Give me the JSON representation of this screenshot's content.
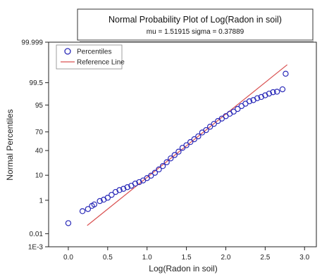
{
  "chart_data": {
    "type": "scatter",
    "title": "Normal Probability Plot of Log(Radon in soil)",
    "subtitle": "mu = 1.51915  sigma = 0.37889",
    "xlabel": "Log(Radon in soil)",
    "ylabel": "Normal Percentiles",
    "xlim": [
      -0.25,
      3.15
    ],
    "x_ticks": [
      "0.0",
      "0.5",
      "1.0",
      "1.5",
      "2.0",
      "2.5",
      "3.0"
    ],
    "y_ticks": [
      "99.999",
      "99.5",
      "95",
      "70",
      "40",
      "10",
      "1",
      "0.01",
      "1E-3"
    ],
    "y_tick_z": [
      4.265,
      2.576,
      1.645,
      0.524,
      -0.253,
      -1.282,
      -2.326,
      -3.719,
      -4.265
    ],
    "legend_position": "top-left",
    "grid": false,
    "series": [
      {
        "name": "Percentiles",
        "marker": "open-circle",
        "color": "#2a2ab8",
        "points": [
          [
            0.0,
            -3.28
          ],
          [
            0.18,
            -2.78
          ],
          [
            0.25,
            -2.69
          ],
          [
            0.3,
            -2.56
          ],
          [
            0.33,
            -2.5
          ],
          [
            0.4,
            -2.36
          ],
          [
            0.45,
            -2.3
          ],
          [
            0.5,
            -2.22
          ],
          [
            0.55,
            -2.1
          ],
          [
            0.6,
            -1.98
          ],
          [
            0.65,
            -1.9
          ],
          [
            0.7,
            -1.85
          ],
          [
            0.75,
            -1.78
          ],
          [
            0.8,
            -1.72
          ],
          [
            0.85,
            -1.63
          ],
          [
            0.9,
            -1.57
          ],
          [
            0.95,
            -1.5
          ],
          [
            1.0,
            -1.4
          ],
          [
            1.05,
            -1.3
          ],
          [
            1.1,
            -1.18
          ],
          [
            1.15,
            -1.04
          ],
          [
            1.2,
            -0.9
          ],
          [
            1.25,
            -0.74
          ],
          [
            1.3,
            -0.58
          ],
          [
            1.35,
            -0.44
          ],
          [
            1.4,
            -0.3
          ],
          [
            1.45,
            -0.14
          ],
          [
            1.5,
            -0.03
          ],
          [
            1.55,
            0.1
          ],
          [
            1.6,
            0.22
          ],
          [
            1.65,
            0.34
          ],
          [
            1.7,
            0.5
          ],
          [
            1.75,
            0.6
          ],
          [
            1.8,
            0.74
          ],
          [
            1.85,
            0.86
          ],
          [
            1.9,
            0.98
          ],
          [
            1.95,
            1.08
          ],
          [
            2.0,
            1.18
          ],
          [
            2.05,
            1.28
          ],
          [
            2.1,
            1.37
          ],
          [
            2.15,
            1.48
          ],
          [
            2.2,
            1.6
          ],
          [
            2.25,
            1.7
          ],
          [
            2.3,
            1.8
          ],
          [
            2.35,
            1.85
          ],
          [
            2.4,
            1.93
          ],
          [
            2.45,
            1.98
          ],
          [
            2.5,
            2.05
          ],
          [
            2.55,
            2.12
          ],
          [
            2.6,
            2.18
          ],
          [
            2.65,
            2.2
          ],
          [
            2.72,
            2.3
          ],
          [
            2.76,
            2.95
          ]
        ]
      },
      {
        "name": "Reference Line",
        "color": "#d95050",
        "line": [
          [
            0.24,
            -3.379
          ],
          [
            2.78,
            3.325
          ]
        ]
      }
    ]
  }
}
